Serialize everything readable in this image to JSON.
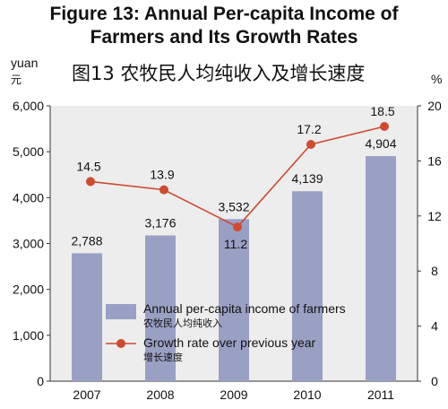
{
  "header": {
    "title_en_line1": "Figure 13: Annual Per-capita Income of",
    "title_en_line2": "Farmers and Its Growth Rates",
    "title_zh": "图13 农牧民人均纯收入及增长速度"
  },
  "units": {
    "left": "yuan",
    "left_zh": "元",
    "right": "%"
  },
  "chart_data": {
    "type": "bar",
    "categories": [
      "2007",
      "2008",
      "2009",
      "2010",
      "2011"
    ],
    "series": [
      {
        "name": "Annual per-capita income of farmers",
        "name_zh": "农牧民人均纯收入",
        "type": "bar",
        "axis": "left",
        "values": [
          2788,
          3176,
          3532,
          4139,
          4904
        ],
        "labels": [
          "2,788",
          "3,176",
          "3,532",
          "4,139",
          "4,904"
        ],
        "color": "#9aa0c4"
      },
      {
        "name": "Growth rate over previous year",
        "name_zh": "增长速度",
        "type": "line",
        "axis": "right",
        "values": [
          14.5,
          13.9,
          11.2,
          17.2,
          18.5
        ],
        "labels": [
          "14.5",
          "13.9",
          "11.2",
          "17.2",
          "18.5"
        ],
        "color": "#cc4b32"
      }
    ],
    "y_left": {
      "min": 0,
      "max": 6000,
      "ticks": [
        0,
        1000,
        2000,
        3000,
        4000,
        5000,
        6000
      ],
      "tick_labels": [
        "0",
        "1,000",
        "2,000",
        "3,000",
        "4,000",
        "5,000",
        "6,000"
      ]
    },
    "y_right": {
      "min": 0,
      "max": 20,
      "ticks": [
        0,
        4,
        8,
        12,
        16,
        20
      ],
      "tick_labels": [
        "0",
        "4",
        "8",
        "12",
        "16",
        "20"
      ]
    },
    "plot_background": "#ededed",
    "grid": false,
    "legend_position": "bottom-center inside plot"
  }
}
